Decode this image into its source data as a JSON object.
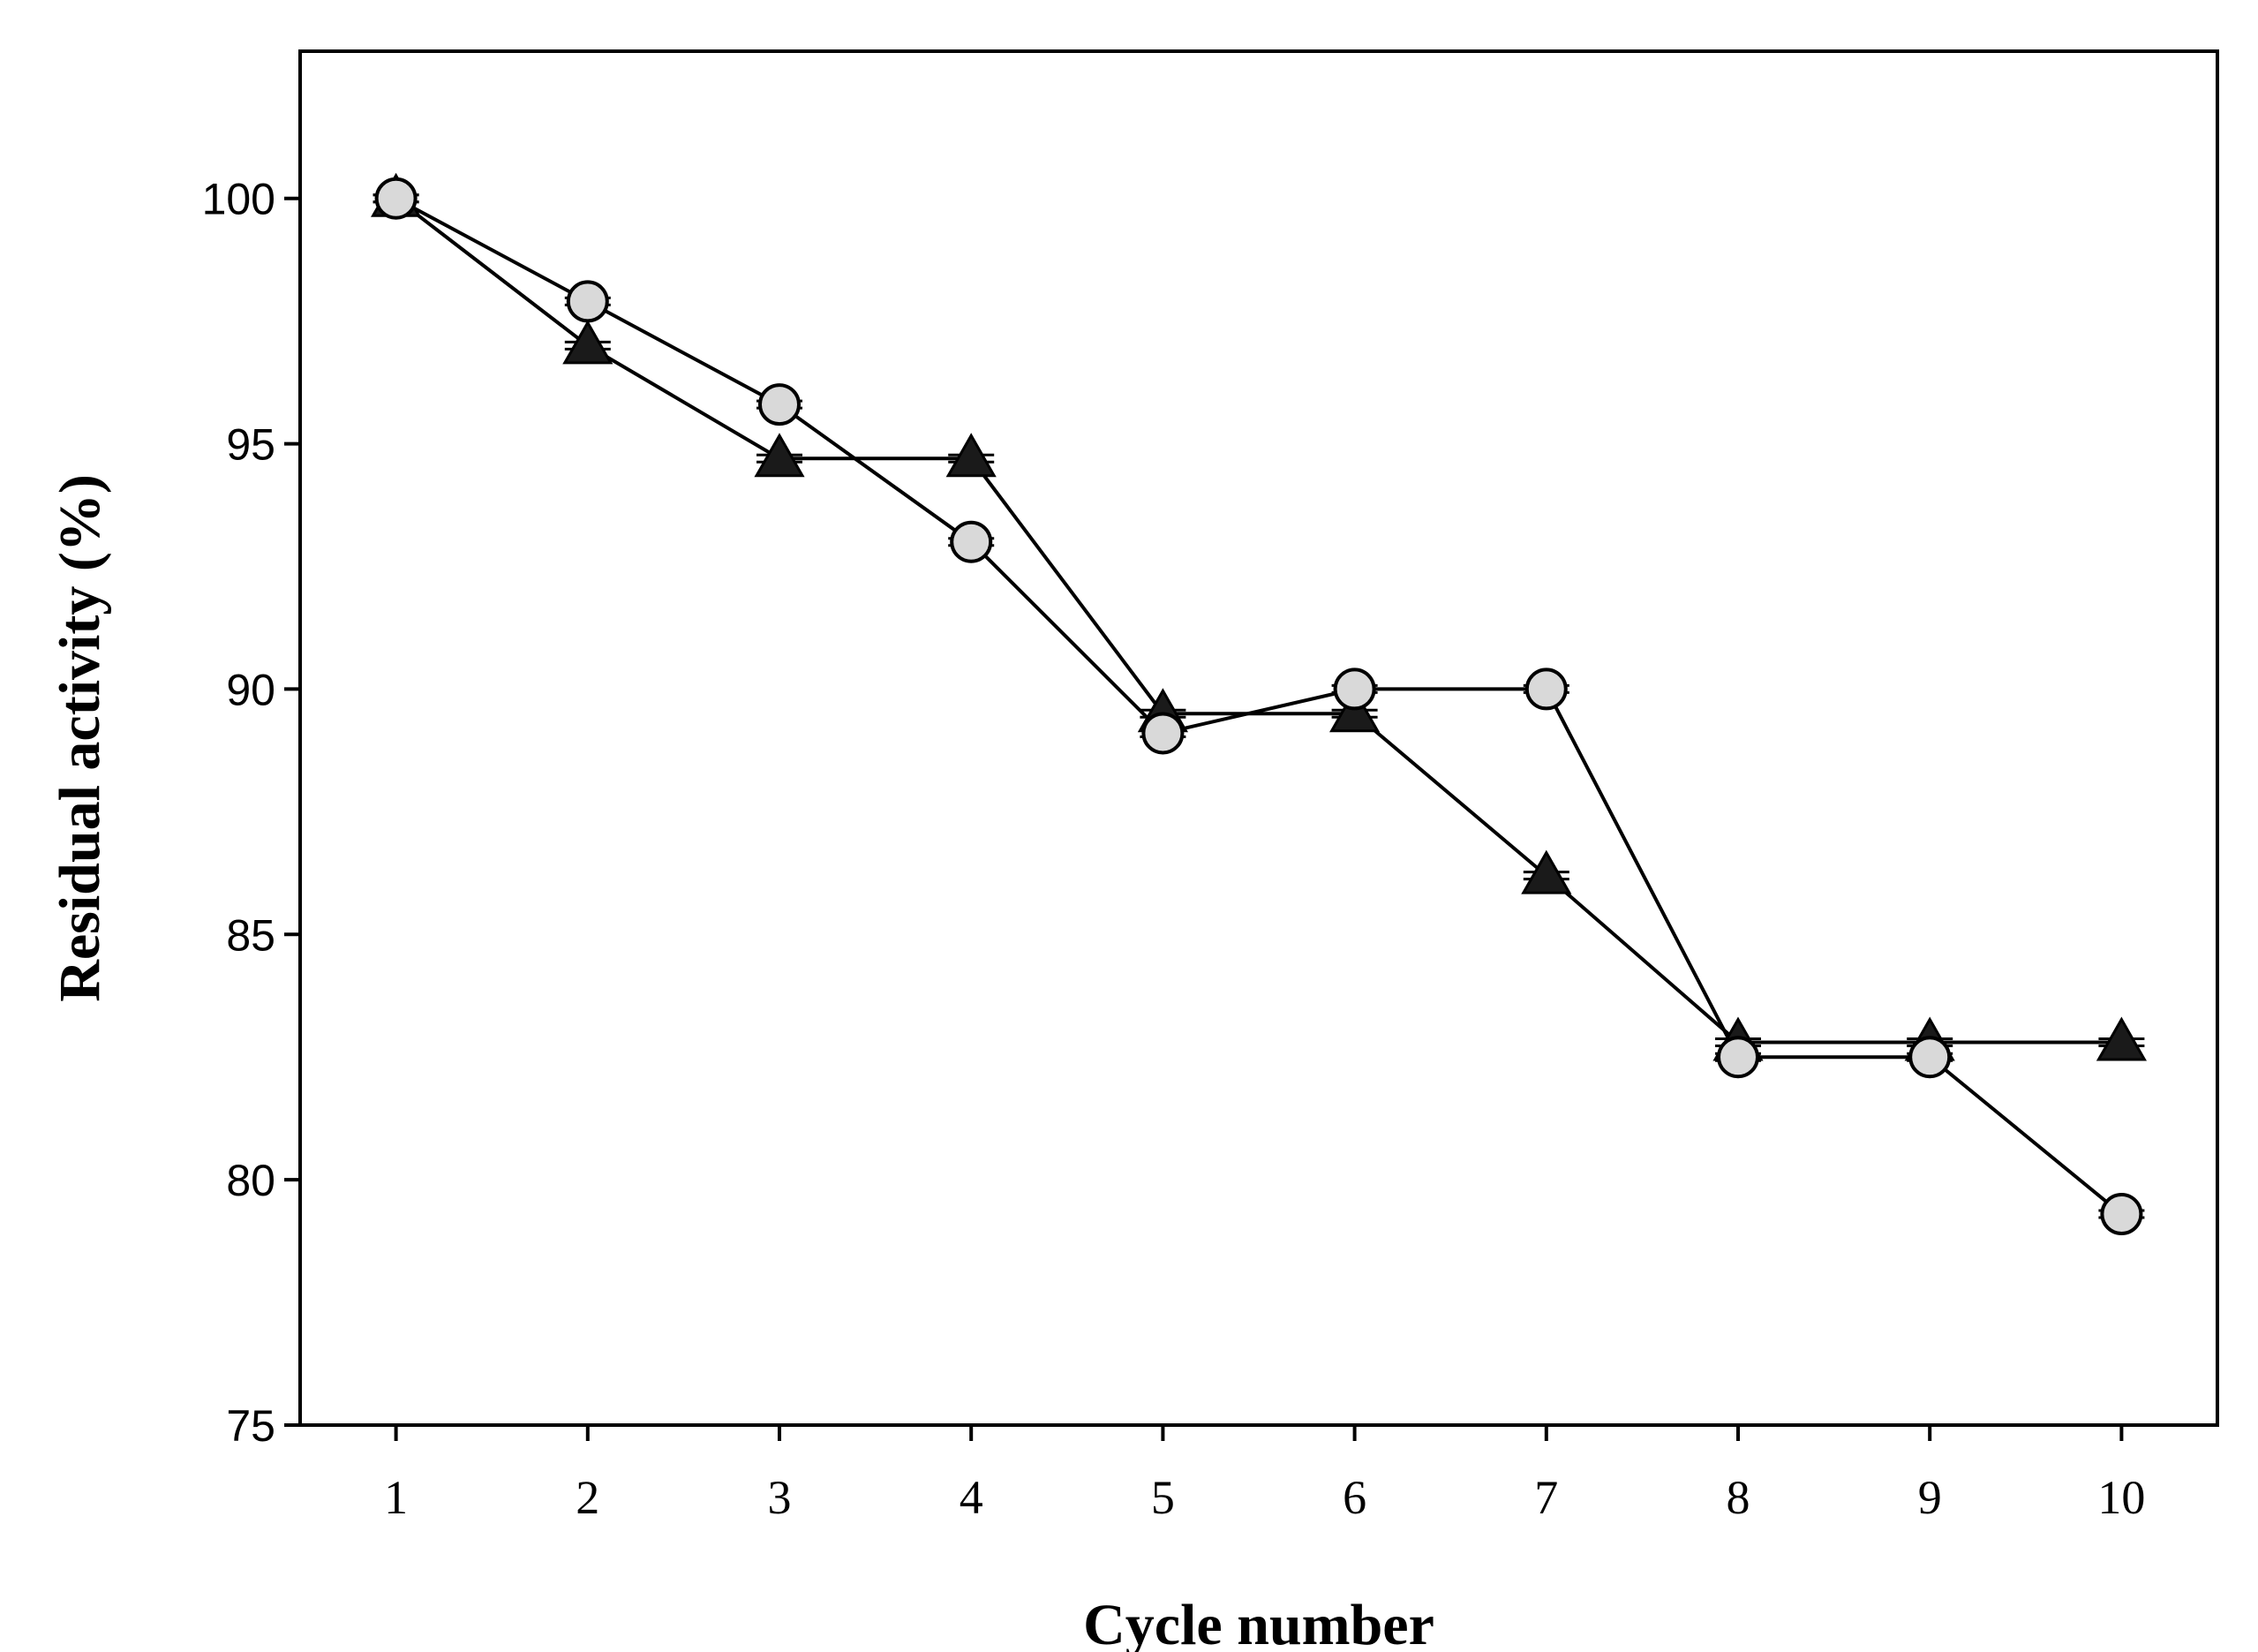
{
  "chart_data": {
    "type": "line",
    "title": "",
    "xlabel": "Cycle number",
    "ylabel": "Residual activity (%)",
    "x": [
      1,
      2,
      3,
      4,
      5,
      6,
      7,
      8,
      9,
      10
    ],
    "xticks": [
      "1",
      "2",
      "3",
      "4",
      "5",
      "6",
      "7",
      "8",
      "9",
      "10"
    ],
    "yticks": [
      "75",
      "80",
      "85",
      "90",
      "95",
      "100"
    ],
    "ylim": [
      75,
      103
    ],
    "xlim": [
      0.5,
      10.5
    ],
    "grid": false,
    "series": [
      {
        "name": "triangle series",
        "marker": "triangle",
        "color": "#1a1a1a",
        "values": [
          100,
          97.0,
          94.7,
          94.7,
          89.5,
          89.5,
          86.2,
          82.8,
          82.8,
          82.8
        ]
      },
      {
        "name": "circle series",
        "marker": "circle",
        "color": "#d9d9d9",
        "values": [
          100,
          97.9,
          95.8,
          93.0,
          89.1,
          90.0,
          90.0,
          82.5,
          82.5,
          79.3
        ]
      }
    ]
  }
}
